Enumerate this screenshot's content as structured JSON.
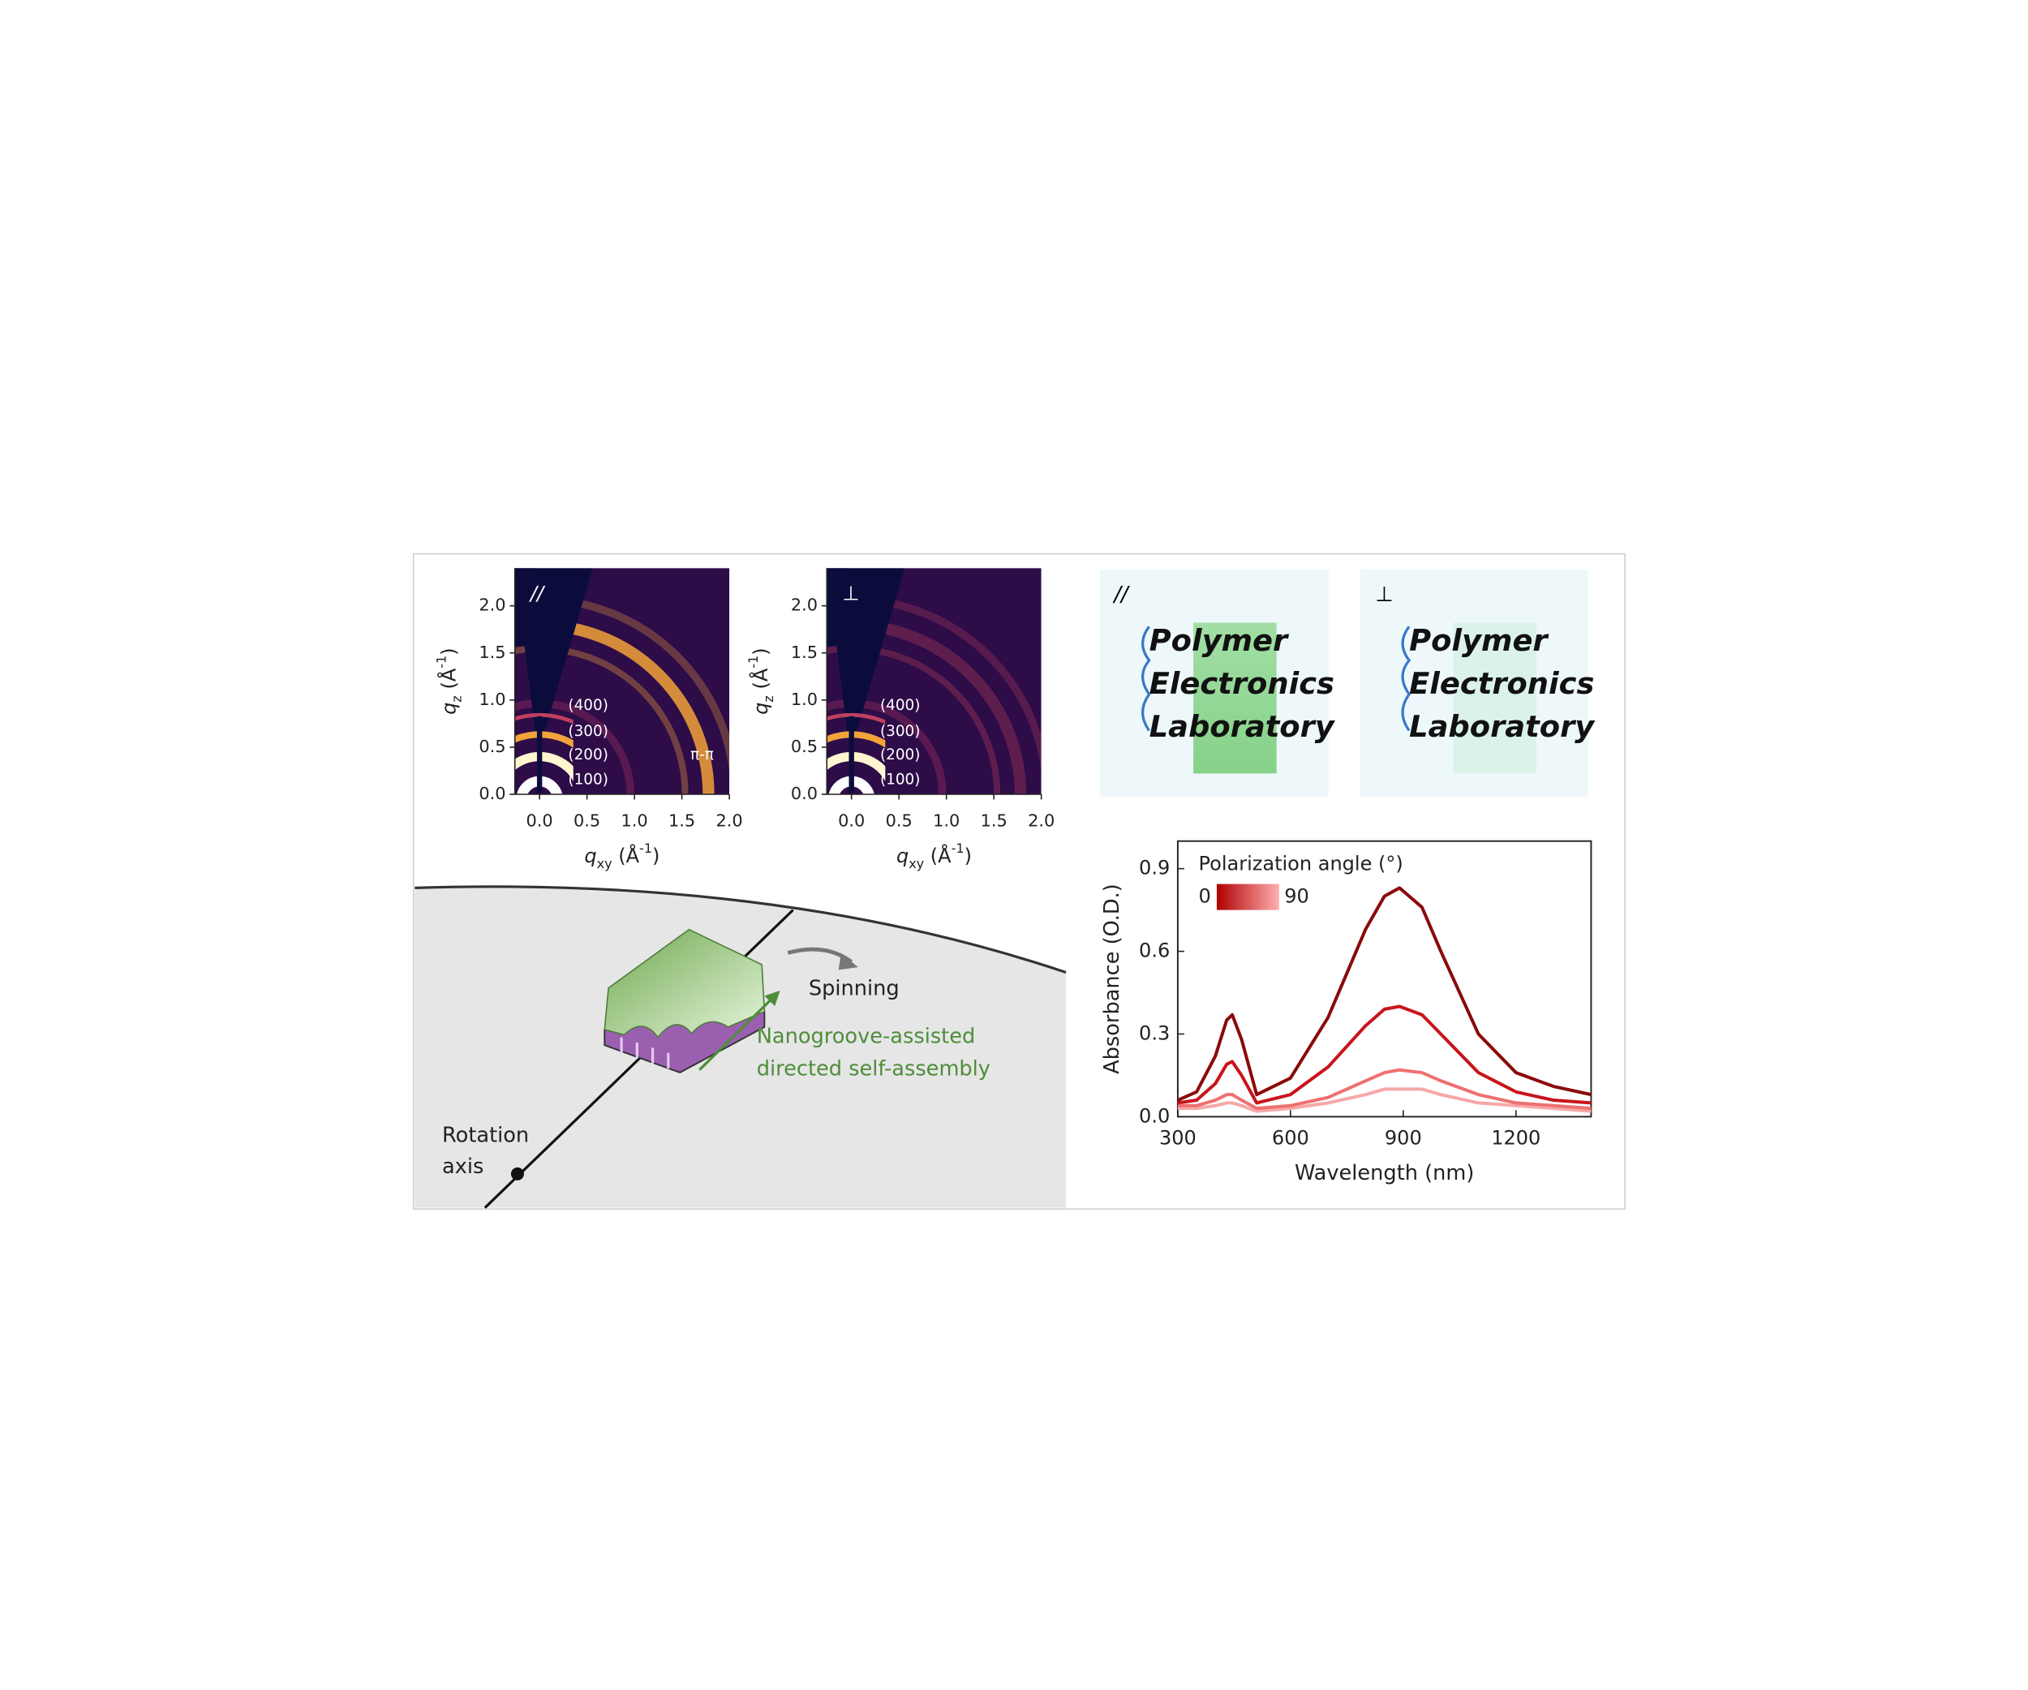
{
  "chart_data": [
    {
      "type": "image",
      "panel_label": "//",
      "xlabel": {
        "symbol": "q",
        "sub": "xy",
        "unit": " (Å",
        "sup": "-1",
        "close": ")"
      },
      "ylabel": {
        "symbol": "q",
        "sub": "z",
        "unit": " (Å",
        "sup": "-1",
        "close": ")"
      },
      "xlim": [
        -0.26,
        2.0
      ],
      "ylim": [
        0,
        2.4
      ],
      "xticks": [
        {
          "value": 0,
          "label": "0.0"
        },
        0.5,
        {
          "value": 1,
          "label": "1.0"
        },
        1.5,
        {
          "value": 2,
          "label": "2.0"
        }
      ],
      "yticks": [
        {
          "value": 0,
          "label": "0.0"
        },
        0.5,
        {
          "value": 1,
          "label": "1.0"
        },
        1.5,
        {
          "value": 2,
          "label": "2.0"
        }
      ],
      "annotations": [
        "(400)",
        "(300)",
        "(200)",
        "(100)",
        "π-π"
      ]
    },
    {
      "type": "image",
      "panel_label": "⊥",
      "xlabel": {
        "symbol": "q",
        "sub": "xy",
        "unit": " (Å",
        "sup": "-1",
        "close": ")"
      },
      "ylabel": {
        "symbol": "q",
        "sub": "z",
        "unit": " (Å",
        "sup": "-1",
        "close": ")"
      },
      "xlim": [
        -0.26,
        2.0
      ],
      "ylim": [
        0,
        2.4
      ],
      "xticks": [
        {
          "value": 0,
          "label": "0.0"
        },
        0.5,
        {
          "value": 1,
          "label": "1.0"
        },
        1.5,
        {
          "value": 2,
          "label": "2.0"
        }
      ],
      "yticks": [
        {
          "value": 0,
          "label": "0.0"
        },
        0.5,
        {
          "value": 1,
          "label": "1.0"
        },
        1.5,
        {
          "value": 2,
          "label": "2.0"
        }
      ],
      "annotations": [
        "(400)",
        "(300)",
        "(200)",
        "(100)"
      ]
    },
    {
      "type": "line",
      "xlabel": "Wavelength (nm)",
      "ylabel": "Absorbance (O.D.)",
      "xlim": [
        300,
        1400
      ],
      "ylim": [
        0,
        1.0
      ],
      "xticks": [
        300,
        600,
        900,
        1200
      ],
      "yticks": [
        {
          "value": 0,
          "label": "0.0"
        },
        0.3,
        0.6,
        0.9
      ],
      "x": [
        300,
        350,
        400,
        430,
        445,
        470,
        510,
        600,
        700,
        800,
        850,
        890,
        950,
        1000,
        1100,
        1200,
        1300,
        1400
      ],
      "series": [
        {
          "color": "#8b0a0a",
          "values": [
            0.06,
            0.09,
            0.22,
            0.35,
            0.37,
            0.28,
            0.08,
            0.14,
            0.36,
            0.68,
            0.8,
            0.83,
            0.76,
            0.6,
            0.3,
            0.16,
            0.11,
            0.08
          ]
        },
        {
          "color": "#c8141c",
          "values": [
            0.05,
            0.06,
            0.12,
            0.19,
            0.2,
            0.15,
            0.05,
            0.08,
            0.18,
            0.33,
            0.39,
            0.4,
            0.37,
            0.3,
            0.16,
            0.09,
            0.06,
            0.05
          ]
        },
        {
          "color": "#ee7070",
          "values": [
            0.04,
            0.04,
            0.06,
            0.08,
            0.08,
            0.06,
            0.03,
            0.04,
            0.07,
            0.13,
            0.16,
            0.17,
            0.16,
            0.13,
            0.08,
            0.05,
            0.04,
            0.03
          ]
        },
        {
          "color": "#f6a8a8",
          "values": [
            0.03,
            0.03,
            0.04,
            0.05,
            0.05,
            0.04,
            0.02,
            0.03,
            0.05,
            0.08,
            0.1,
            0.1,
            0.1,
            0.08,
            0.05,
            0.04,
            0.03,
            0.02
          ]
        }
      ],
      "legend": {
        "title": "Polarization angle (°)",
        "ticks": [
          0,
          90
        ],
        "colors": [
          "#b00000",
          "#ffb0b0"
        ]
      }
    }
  ],
  "photos": [
    {
      "label": "//",
      "lines": [
        "Polymer",
        "Electronics",
        "Laboratory"
      ]
    },
    {
      "label": "⊥",
      "lines": [
        "Polymer",
        "Electronics",
        "Laboratory"
      ]
    }
  ],
  "diagram": {
    "spinning": "Spinning",
    "assembly": [
      "Nanogroove-assisted",
      "directed self-assembly"
    ],
    "axis": [
      "Rotation",
      "axis"
    ]
  }
}
